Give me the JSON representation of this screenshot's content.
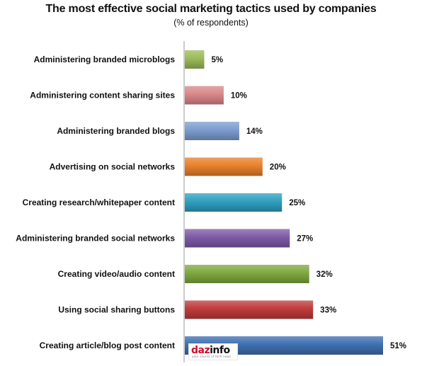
{
  "chart_data": {
    "type": "bar",
    "orientation": "horizontal",
    "title": "The most effective social marketing tactics used by companies",
    "subtitle": "(% of respondents)",
    "categories": [
      "Administering branded microblogs",
      "Administering content sharing sites",
      "Administering branded blogs",
      "Advertising on social networks",
      "Creating research/whitepaper content",
      "Administering branded social networks",
      "Creating video/audio content",
      "Using social sharing buttons",
      "Creating article/blog post content"
    ],
    "values": [
      5,
      10,
      14,
      20,
      25,
      27,
      32,
      33,
      51
    ],
    "value_labels": [
      "5%",
      "10%",
      "14%",
      "20%",
      "25%",
      "27%",
      "32%",
      "33%",
      "51%"
    ],
    "colors": [
      "#9bbb59",
      "#d9878a",
      "#7c9ccf",
      "#e8802b",
      "#2f9fbf",
      "#7d5aa6",
      "#7fa83e",
      "#bf3b3b",
      "#3f6fb0"
    ],
    "xlim": [
      0,
      51
    ],
    "grid": false,
    "legend": "none"
  },
  "watermark": {
    "brand_left": "daz",
    "brand_right": "info",
    "tagline": "your source of tech news"
  }
}
